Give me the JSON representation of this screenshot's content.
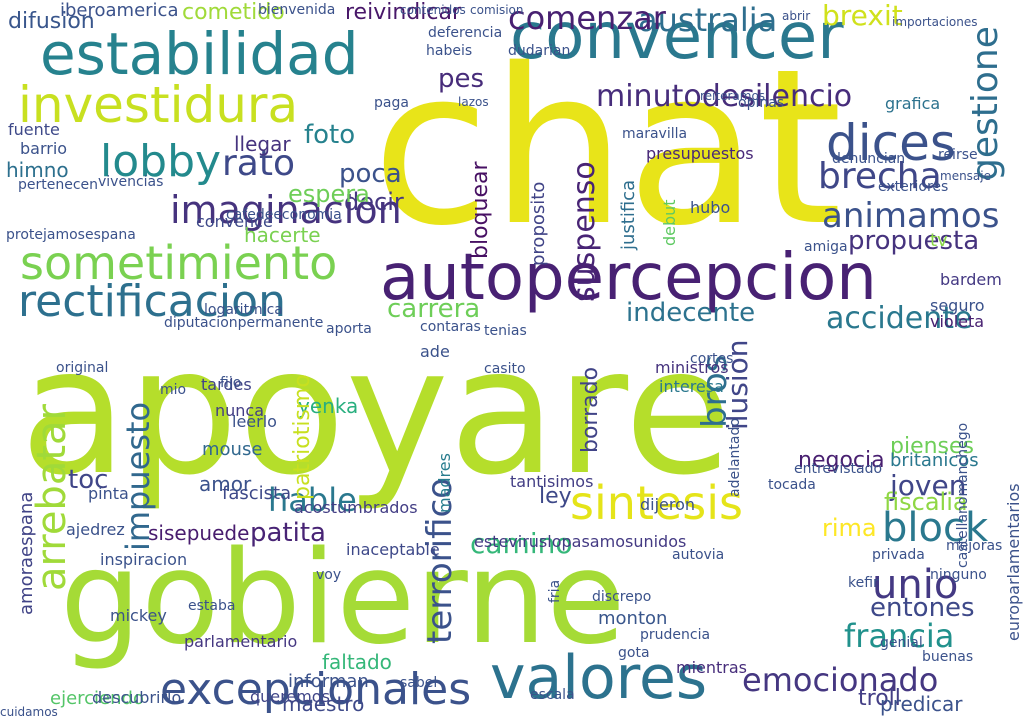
{
  "words": [
    {
      "text": "apoyare",
      "color": "#b5de2b"
    },
    {
      "text": "chat",
      "color": "#e8e419"
    },
    {
      "text": "gobierne",
      "color": "#a5db36"
    },
    {
      "text": "autopercepcion",
      "color": "#482173"
    },
    {
      "text": "estabilidad",
      "color": "#26828e"
    },
    {
      "text": "convencer",
      "color": "#2a788e"
    },
    {
      "text": "investidura",
      "color": "#c8e020"
    },
    {
      "text": "sometimiento",
      "color": "#7ad151"
    },
    {
      "text": "rectificacion",
      "color": "#2d708e"
    },
    {
      "text": "excepcionales",
      "color": "#3b528b"
    },
    {
      "text": "valores",
      "color": "#2c728e"
    },
    {
      "text": "emocionado",
      "color": "#453781"
    },
    {
      "text": "sintesis",
      "color": "#e5e419"
    },
    {
      "text": "block",
      "color": "#2a788e"
    },
    {
      "text": "francia",
      "color": "#21918c"
    },
    {
      "text": "dices",
      "color": "#3b528b"
    },
    {
      "text": "lobby",
      "color": "#238a8d"
    },
    {
      "text": "imaginacion",
      "color": "#46337e"
    },
    {
      "text": "rato",
      "color": "#3e4989"
    },
    {
      "text": "brecha",
      "color": "#3f4788"
    },
    {
      "text": "animamos",
      "color": "#3b528b"
    },
    {
      "text": "propuesta",
      "color": "#46337e"
    },
    {
      "text": "minutodesilencio",
      "color": "#472d7b"
    },
    {
      "text": "australia",
      "color": "#2e6e8e"
    },
    {
      "text": "comenzar",
      "color": "#482071"
    },
    {
      "text": "brexit",
      "color": "#d0e11c"
    },
    {
      "text": "gestione",
      "color": "#2e6e8e"
    },
    {
      "text": "indecente",
      "color": "#2c728e"
    },
    {
      "text": "accidente",
      "color": "#2a788e"
    },
    {
      "text": "carrera",
      "color": "#6ece58"
    },
    {
      "text": "hable",
      "color": "#2a788e"
    },
    {
      "text": "camino",
      "color": "#35b779"
    },
    {
      "text": "patita",
      "color": "#482475"
    },
    {
      "text": "unio",
      "color": "#443983"
    },
    {
      "text": "entones",
      "color": "#3e4989"
    },
    {
      "text": "joven",
      "color": "#404688"
    },
    {
      "text": "pienses",
      "color": "#6ece58"
    },
    {
      "text": "fiscalia",
      "color": "#8fd744"
    },
    {
      "text": "arrebatar",
      "color": "#a0da39"
    },
    {
      "text": "terrorifico",
      "color": "#3b528b"
    },
    {
      "text": "impuesto",
      "color": "#31688e"
    },
    {
      "text": "ilusion",
      "color": "#404688"
    },
    {
      "text": "bros",
      "color": "#2e6e8e"
    },
    {
      "text": "borrado",
      "color": "#414487"
    },
    {
      "text": "bloquear",
      "color": "#471063"
    },
    {
      "text": "suspenso",
      "color": "#482475"
    },
    {
      "text": "foto",
      "color": "#26828e"
    },
    {
      "text": "poca",
      "color": "#3b528b"
    },
    {
      "text": "decir",
      "color": "#453781"
    },
    {
      "text": "espera",
      "color": "#6ece58"
    },
    {
      "text": "hacerte",
      "color": "#7ad151"
    },
    {
      "text": "pes",
      "color": "#472c7a"
    },
    {
      "text": "reivindicar",
      "color": "#481769"
    },
    {
      "text": "cometido",
      "color": "#a0da39"
    },
    {
      "text": "difusion",
      "color": "#39568c"
    },
    {
      "text": "iberoamerica",
      "color": "#3b528b"
    },
    {
      "text": "amoraespana",
      "color": "#414487"
    },
    {
      "text": "ejerciendo",
      "color": "#54c568"
    },
    {
      "text": "parlamentario",
      "color": "#453781"
    },
    {
      "text": "faltado",
      "color": "#35b779"
    },
    {
      "text": "informan",
      "color": "#3b528b"
    },
    {
      "text": "maestro",
      "color": "#3e4989"
    },
    {
      "text": "troll",
      "color": "#433e85"
    },
    {
      "text": "predicar",
      "color": "#3b528b"
    },
    {
      "text": "estevirusl​opasamosunidos",
      "color": "#443a83"
    },
    {
      "text": "yenka",
      "color": "#29af7f"
    },
    {
      "text": "patriotismo",
      "color": "#c8e020"
    },
    {
      "text": "mouse",
      "color": "#31688e"
    },
    {
      "text": "fascista",
      "color": "#3e4989"
    },
    {
      "text": "sisepuede",
      "color": "#481c6e"
    },
    {
      "text": "negocia",
      "color": "#481f70"
    },
    {
      "text": "himno",
      "color": "#2d708e"
    },
    {
      "text": "barrio",
      "color": "#3b528b"
    },
    {
      "text": "llegar",
      "color": "#46337e"
    },
    {
      "text": "fuente",
      "color": "#3e4989"
    },
    {
      "text": "convence",
      "color": "#3e4989"
    },
    {
      "text": "toc",
      "color": "#404688"
    },
    {
      "text": "amor",
      "color": "#3b528b"
    },
    {
      "text": "mientras",
      "color": "#472d7b"
    },
    {
      "text": "monton",
      "color": "#39568c"
    },
    {
      "text": "tardes",
      "color": "#414487"
    },
    {
      "text": "nunca",
      "color": "#433e85"
    },
    {
      "text": "ministros",
      "color": "#46337e"
    },
    {
      "text": "interesa",
      "color": "#2a788e"
    },
    {
      "text": "rima",
      "color": "#fde725"
    },
    {
      "text": "britanicos",
      "color": "#2a788e"
    },
    {
      "text": "presupuestos",
      "color": "#482878"
    },
    {
      "text": "proposito",
      "color": "#414487"
    },
    {
      "text": "justifica",
      "color": "#2e6e8e"
    },
    {
      "text": "tv",
      "color": "#89d548"
    },
    {
      "text": "grafica",
      "color": "#2c728e"
    },
    {
      "text": "violeta",
      "color": "#482071"
    },
    {
      "text": "seguro",
      "color": "#3b528b"
    },
    {
      "text": "bardem",
      "color": "#443983"
    },
    {
      "text": "ley",
      "color": "#3e4989"
    },
    {
      "text": "madres",
      "color": "#287d8e"
    },
    {
      "text": "dijeron",
      "color": "#3b528b"
    },
    {
      "text": "tantisimos",
      "color": "#433e85"
    },
    {
      "text": "inaceptable",
      "color": "#3e4989"
    },
    {
      "text": "acostumbrados",
      "color": "#433e85"
    },
    {
      "text": "mickey",
      "color": "#3b528b"
    },
    {
      "text": "inspiracion",
      "color": "#3b528b"
    },
    {
      "text": "queremos",
      "color": "#404688"
    },
    {
      "text": "descubrirlo",
      "color": "#3b528b"
    },
    {
      "text": "pinta",
      "color": "#3b528b"
    },
    {
      "text": "ajedrez",
      "color": "#3b528b"
    },
    {
      "text": "ade",
      "color": "#3b528b"
    },
    {
      "text": "leerlo",
      "color": "#3b528b"
    },
    {
      "text": "debut",
      "color": "#5ec962"
    },
    {
      "text": "hubo",
      "color": "#3b528b"
    },
    {
      "text": "cafedeeconomia",
      "color": "#3b528b"
    },
    {
      "text": "vivencias",
      "color": "#3b528b"
    },
    {
      "text": "pertenecen",
      "color": "#3b528b"
    },
    {
      "text": "denuncian",
      "color": "#3b528b"
    },
    {
      "text": "exteriores",
      "color": "#3b528b"
    },
    {
      "text": "reirse",
      "color": "#3b528b"
    },
    {
      "text": "amiga",
      "color": "#3b528b"
    },
    {
      "text": "mensaje",
      "color": "#3b528b"
    },
    {
      "text": "mejoras",
      "color": "#3b528b"
    },
    {
      "text": "privada",
      "color": "#3b528b"
    },
    {
      "text": "ninguno",
      "color": "#3b528b"
    },
    {
      "text": "buenas",
      "color": "#3b528b"
    },
    {
      "text": "genial",
      "color": "#3b528b"
    },
    {
      "text": "cortes",
      "color": "#3b528b"
    },
    {
      "text": "maravilla",
      "color": "#3b528b"
    },
    {
      "text": "paga",
      "color": "#3b528b"
    },
    {
      "text": "opinas",
      "color": "#3b528b"
    },
    {
      "text": "tocada",
      "color": "#3b528b"
    },
    {
      "text": "casito",
      "color": "#3b528b"
    },
    {
      "text": "contaras",
      "color": "#3b528b"
    },
    {
      "text": "aporta",
      "color": "#3b528b"
    },
    {
      "text": "original",
      "color": "#3b528b"
    },
    {
      "text": "mio",
      "color": "#3b528b"
    },
    {
      "text": "fijo",
      "color": "#3b528b"
    },
    {
      "text": "entrevistado",
      "color": "#3b528b"
    },
    {
      "text": "adelantado",
      "color": "#3b528b"
    },
    {
      "text": "castellanomanchego",
      "color": "#3b528b"
    },
    {
      "text": "europarlamentarios",
      "color": "#3b528b"
    },
    {
      "text": "logaritmica",
      "color": "#3b528b"
    },
    {
      "text": "diputacionpermanente",
      "color": "#3b528b"
    },
    {
      "text": "protejamosespana",
      "color": "#3b528b"
    },
    {
      "text": "autovia",
      "color": "#3b528b"
    },
    {
      "text": "discrepo",
      "color": "#3b528b"
    },
    {
      "text": "prudencia",
      "color": "#3b528b"
    },
    {
      "text": "gota",
      "color": "#3b528b"
    },
    {
      "text": "voy",
      "color": "#3b528b"
    },
    {
      "text": "kefir",
      "color": "#3b528b"
    },
    {
      "text": "tenias",
      "color": "#3b528b"
    },
    {
      "text": "estaba",
      "color": "#3b528b"
    },
    {
      "text": "fria",
      "color": "#3b528b"
    },
    {
      "text": "escala",
      "color": "#3b528b"
    },
    {
      "text": "sabel",
      "color": "#3b528b"
    },
    {
      "text": "deferencia",
      "color": "#3b528b"
    },
    {
      "text": "habeis",
      "color": "#3b528b"
    },
    {
      "text": "dudarian",
      "color": "#3b528b"
    },
    {
      "text": "bienvenida",
      "color": "#3b528b"
    },
    {
      "text": "contenidos",
      "color": "#3b528b"
    },
    {
      "text": "comision",
      "color": "#3b528b"
    },
    {
      "text": "importaciones",
      "color": "#3b528b"
    },
    {
      "text": "lazos",
      "color": "#3b528b"
    },
    {
      "text": "reiteramos",
      "color": "#3b528b"
    },
    {
      "text": "abrir",
      "color": "#3b528b"
    },
    {
      "text": "cuidamos",
      "color": "#3b528b"
    }
  ]
}
